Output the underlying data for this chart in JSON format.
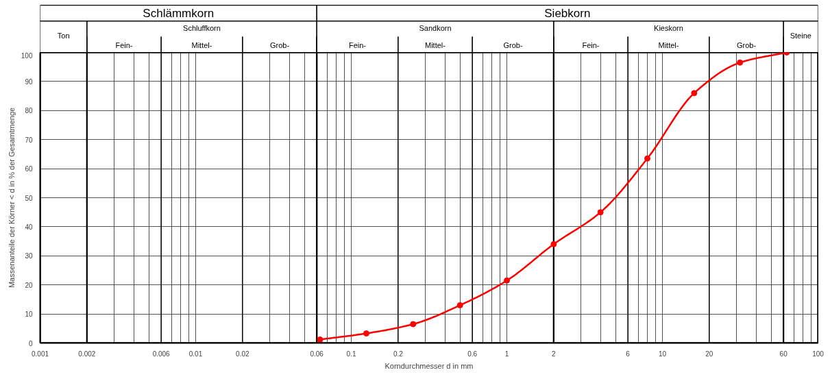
{
  "chart_data": {
    "type": "line",
    "xlabel": "Korndurchmesser d in mm",
    "ylabel": "Massenanteile der Körner < d in % der Gesamtmenge",
    "log": "x",
    "x": [
      0.063,
      0.125,
      0.25,
      0.5,
      1,
      2,
      4,
      8,
      16,
      31.5,
      63
    ],
    "series": [
      {
        "color": "#ff0000",
        "values": [
          1.2,
          3.3,
          6.5,
          13,
          21.5,
          34,
          45,
          63.5,
          86,
          96.5,
          100
        ]
      }
    ],
    "xlim": [
      0.001,
      100
    ],
    "ylim": [
      0,
      100
    ],
    "xticks": [
      0.001,
      0.002,
      {
        "value": 0.003,
        "label": null
      },
      {
        "value": 0.004,
        "label": null
      },
      {
        "value": 0.005,
        "label": null
      },
      0.006,
      {
        "value": 0.007,
        "label": null
      },
      {
        "value": 0.008,
        "label": null
      },
      {
        "value": 0.009,
        "label": null
      },
      0.01,
      0.02,
      {
        "value": 0.03,
        "label": null
      },
      {
        "value": 0.04,
        "label": null
      },
      {
        "value": 0.05,
        "label": null
      },
      0.06,
      {
        "value": 0.07,
        "label": null
      },
      {
        "value": 0.08,
        "label": null
      },
      {
        "value": 0.09,
        "label": null
      },
      0.1,
      0.2,
      {
        "value": 0.3,
        "label": null
      },
      {
        "value": 0.4,
        "label": null
      },
      {
        "value": 0.5,
        "label": null
      },
      0.6,
      {
        "value": 0.7,
        "label": null
      },
      {
        "value": 0.8,
        "label": null
      },
      {
        "value": 0.9,
        "label": null
      },
      1,
      2,
      {
        "value": 3,
        "label": null
      },
      {
        "value": 4,
        "label": null
      },
      {
        "value": 5,
        "label": null
      },
      6,
      {
        "value": 7,
        "label": null
      },
      {
        "value": 8,
        "label": null
      },
      {
        "value": 9,
        "label": null
      },
      10,
      20,
      {
        "value": 30,
        "label": null
      },
      {
        "value": 40,
        "label": null
      },
      {
        "value": 50,
        "label": null
      },
      60,
      {
        "value": 70,
        "label": null
      },
      {
        "value": 80,
        "label": null
      },
      {
        "value": 90,
        "label": null
      },
      100
    ],
    "yticks": [
      0,
      10,
      20,
      30,
      40,
      50,
      60,
      70,
      80,
      90,
      100
    ],
    "grid": true,
    "marker": "circle",
    "line_style": "solid",
    "bands": [
      {
        "axis": "x",
        "from": 0.001,
        "to": 0.06,
        "label": "Schlämmkorn"
      },
      {
        "axis": "x",
        "from": 0.06,
        "to": 100,
        "label": "Siebkorn"
      },
      {
        "axis": "x",
        "from": 0.001,
        "to": 0.002,
        "label": "Ton"
      },
      {
        "axis": "x",
        "from": 0.002,
        "to": 0.06,
        "label": "Schluffkorn"
      },
      {
        "axis": "x",
        "from": 0.002,
        "to": 0.006,
        "label": "Fein-"
      },
      {
        "axis": "x",
        "from": 0.006,
        "to": 0.02,
        "label": "Mittel-"
      },
      {
        "axis": "x",
        "from": 0.02,
        "to": 0.06,
        "label": "Grob-"
      },
      {
        "axis": "x",
        "from": 0.06,
        "to": 2,
        "label": "Sandkorn"
      },
      {
        "axis": "x",
        "from": 0.06,
        "to": 0.2,
        "label": "Fein-"
      },
      {
        "axis": "x",
        "from": 0.2,
        "to": 0.6,
        "label": "Mittel-"
      },
      {
        "axis": "x",
        "from": 0.6,
        "to": 2,
        "label": "Grob-"
      },
      {
        "axis": "x",
        "from": 2,
        "to": 60,
        "label": "Kieskorn"
      },
      {
        "axis": "x",
        "from": 2,
        "to": 6,
        "label": "Fein-"
      },
      {
        "axis": "x",
        "from": 6,
        "to": 20,
        "label": "Mittel-"
      },
      {
        "axis": "x",
        "from": 20,
        "to": 60,
        "label": "Grob-"
      },
      {
        "axis": "x",
        "from": 60,
        "to": 100,
        "label": "Steine"
      }
    ]
  }
}
